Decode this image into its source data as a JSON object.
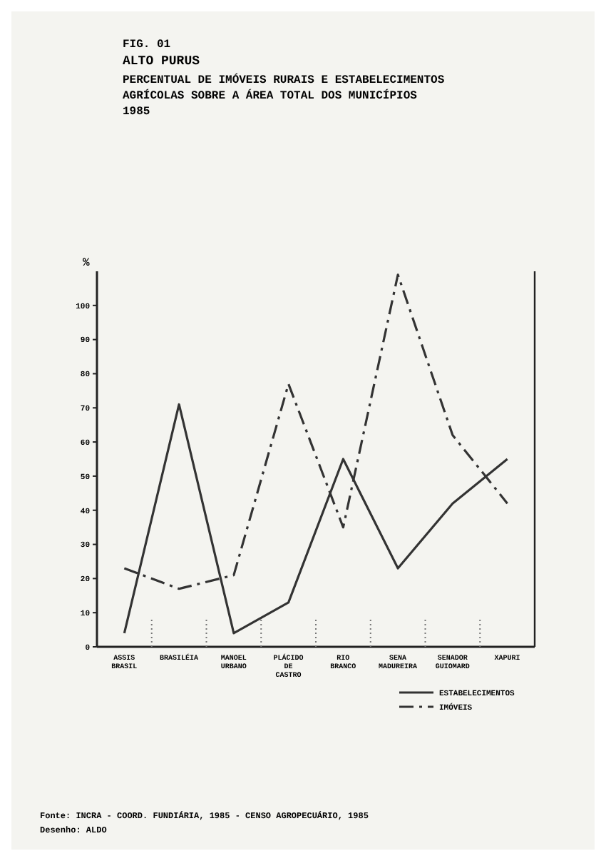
{
  "chart_data": {
    "type": "line",
    "title": "PERCENTUAL DE IMÓVEIS RURAIS E ESTABELECIMENTOS AGRÍCOLAS SOBRE A ÁREA TOTAL DOS MUNICÍPIOS",
    "subtitle": "1985",
    "ylabel": "%",
    "annotations": [
      "FIG. 01",
      "ALTO PURUS",
      "Fonte: INCRA - COORD. FUNDIÁRIA, 1985 - CENSO AGROPECUÁRIO, 1985",
      "Desenho: ALDO"
    ],
    "categories": [
      "ASSIS BRASIL",
      "BRASILÉIA",
      "MANOEL URBANO",
      "PLÁCIDO DE CASTRO",
      "RIO BRANCO",
      "SENA MADUREIRA",
      "SENADOR GUIOMARD",
      "XAPURI"
    ],
    "series": [
      {
        "name": "ESTABELECIMENTOS",
        "color": "#333333",
        "line_style": "solid",
        "values": [
          4,
          71,
          4,
          13,
          55,
          23,
          42,
          55
        ]
      },
      {
        "name": "IMÓVEIS",
        "color": "#333333",
        "line_style": "dashed",
        "values": [
          23,
          17,
          21,
          77,
          35,
          109,
          62,
          42
        ]
      }
    ],
    "ylim": [
      0,
      110
    ],
    "yticks": [
      0,
      10,
      20,
      30,
      40,
      50,
      60,
      70,
      80,
      90,
      100
    ],
    "legend": "bottom right",
    "marker": "none"
  }
}
